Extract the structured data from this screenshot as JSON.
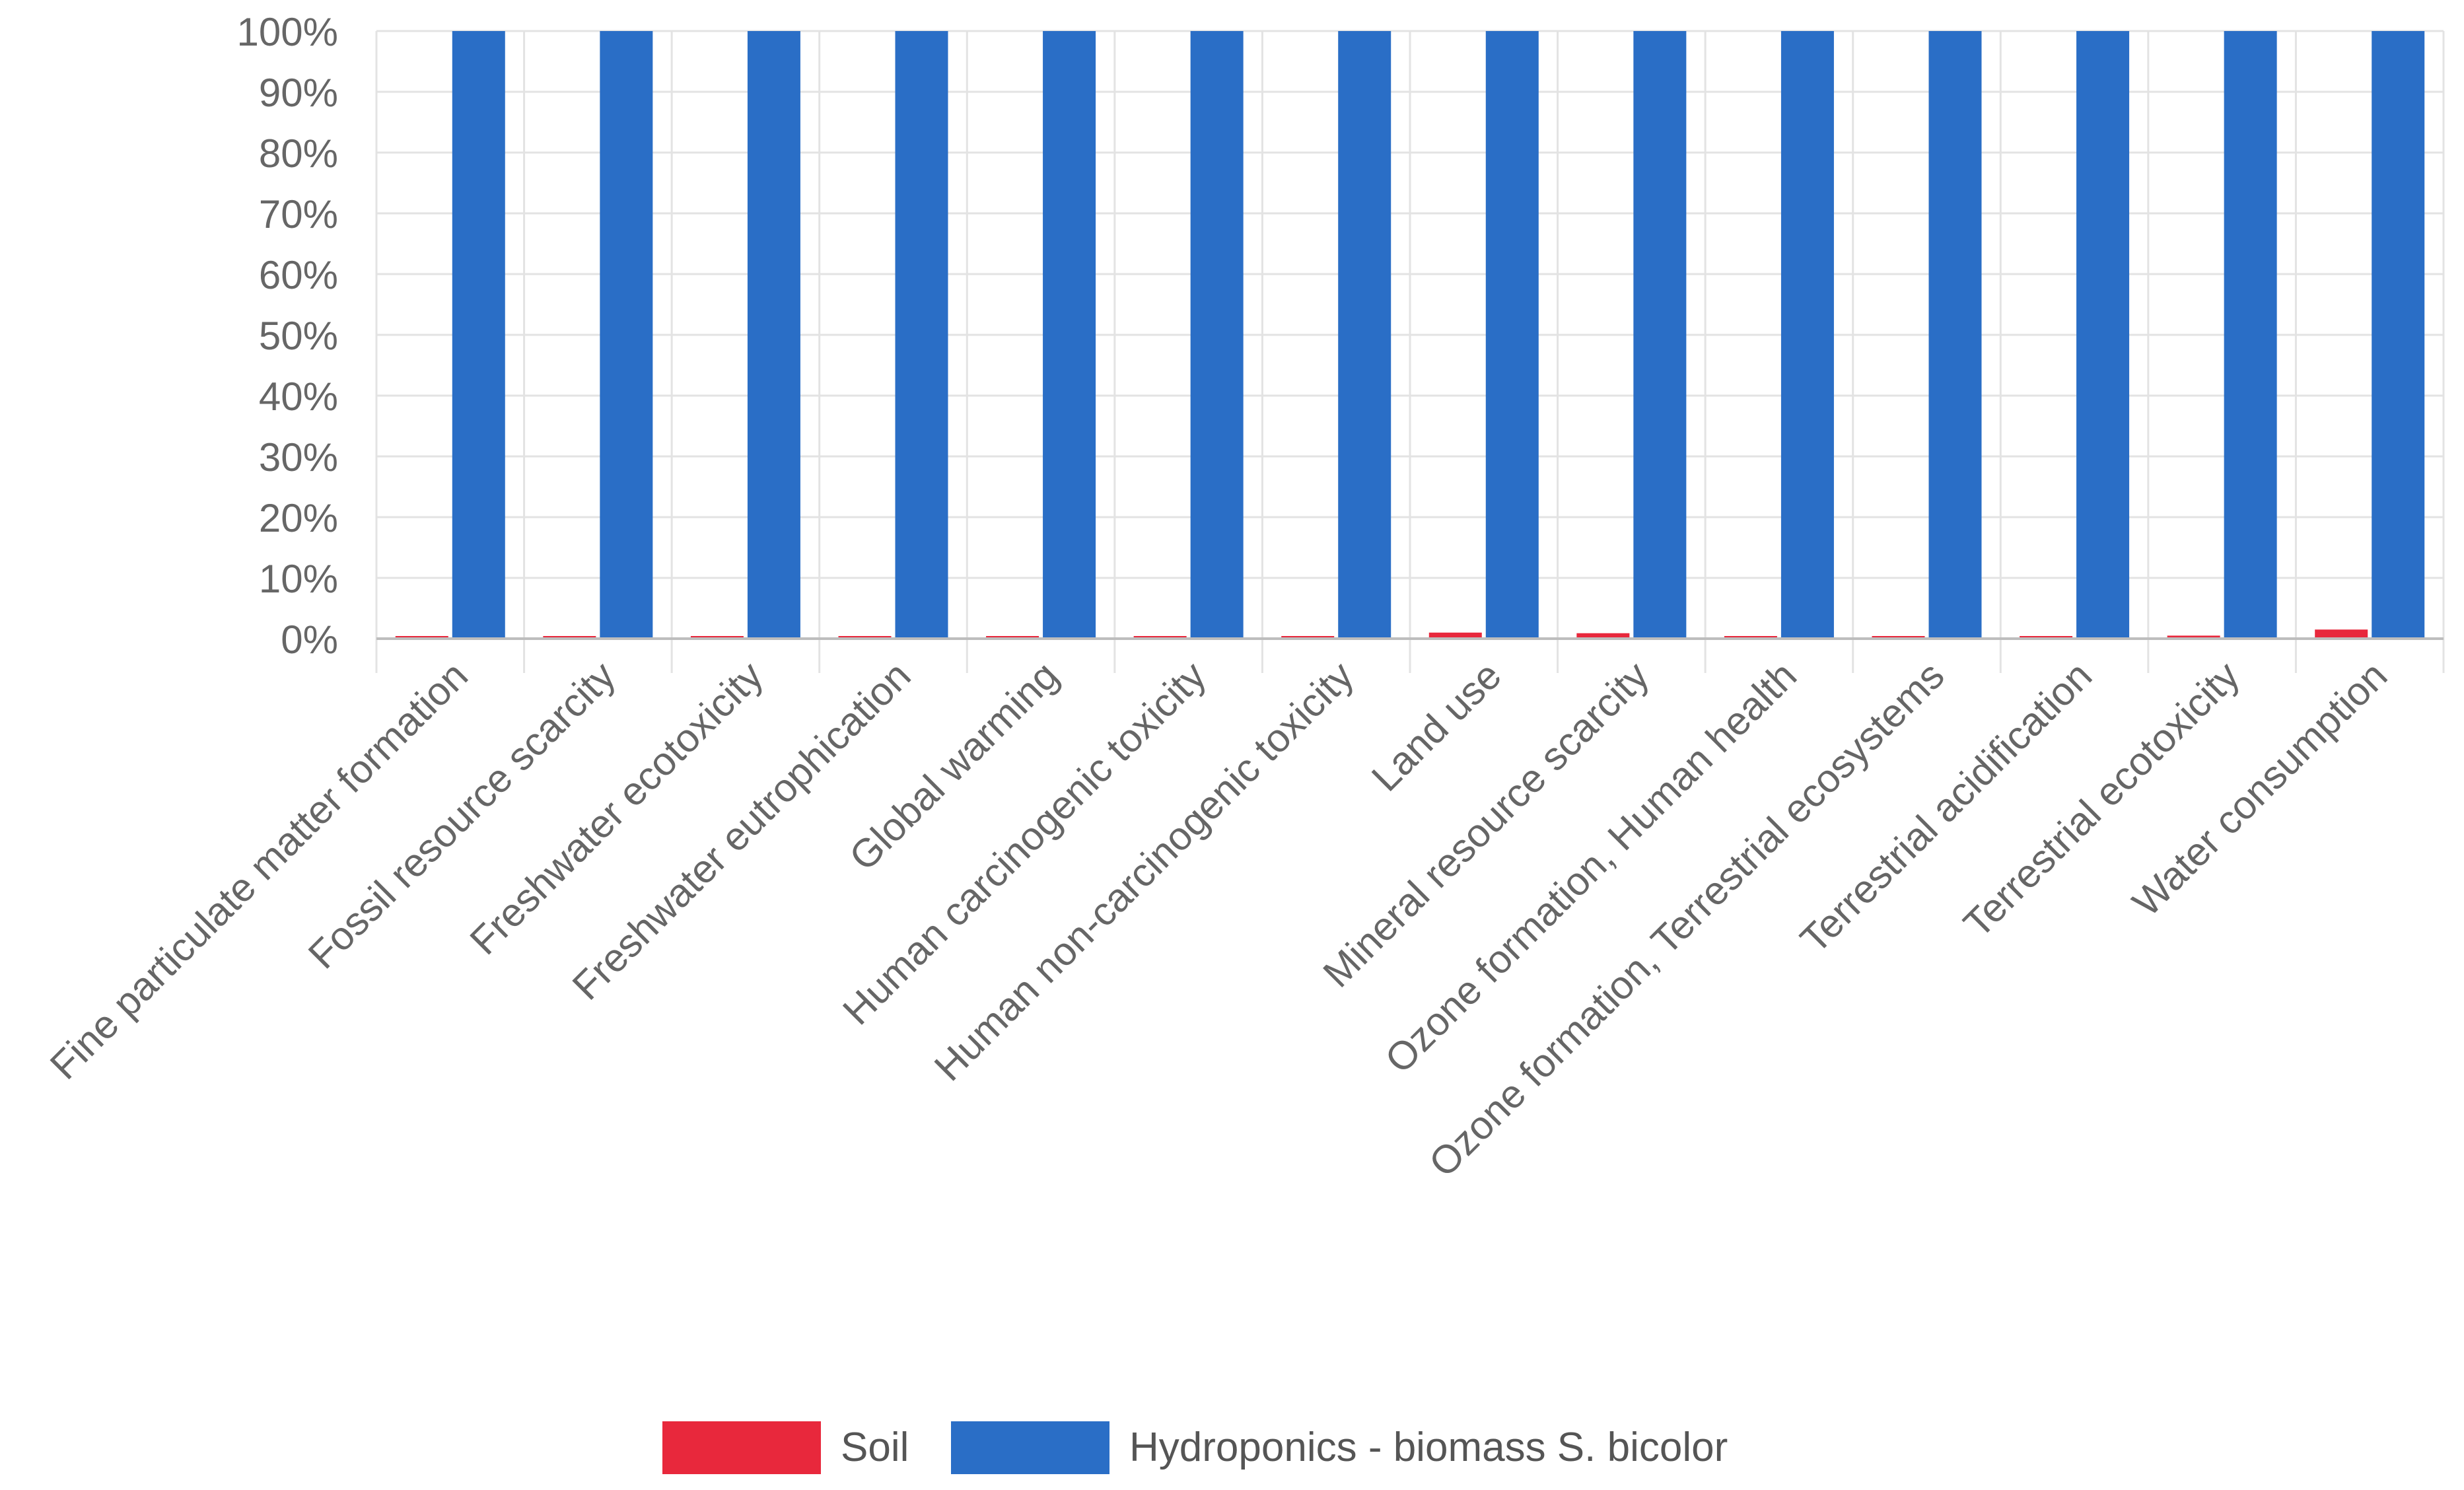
{
  "chart_data": {
    "type": "bar",
    "title": "",
    "xlabel": "",
    "ylabel": "",
    "ylim": [
      0,
      100
    ],
    "yticks": [
      0,
      10,
      20,
      30,
      40,
      50,
      60,
      70,
      80,
      90,
      100
    ],
    "ytick_labels": [
      "0%",
      "10%",
      "20%",
      "30%",
      "40%",
      "50%",
      "60%",
      "70%",
      "80%",
      "90%",
      "100%"
    ],
    "grid": true,
    "legend_position": "bottom-center",
    "categories": [
      "Fine particulate matter formation",
      "Fossil resource scarcity",
      "Freshwater ecotoxicity",
      "Freshwater eutrophication",
      "Global warming",
      "Human carcinogenic toxicity",
      "Human non-carcinogenic toxicity",
      "Land use",
      "Mineral resource scarcity",
      "Ozone formation, Human health",
      "Ozone formation, Terrestrial ecosystems",
      "Terrestrial acidification",
      "Terrestrial ecotoxicity",
      "Water consumption"
    ],
    "series": [
      {
        "name": "Soil",
        "color": "#e8283c",
        "values": [
          0.1,
          0.1,
          0.1,
          0.0,
          0.1,
          0.2,
          0.2,
          1.0,
          0.9,
          0.1,
          0.1,
          0.1,
          0.5,
          1.5
        ]
      },
      {
        "name": "Hydroponics - biomass S. bicolor",
        "color": "#2a6ec6",
        "values": [
          100,
          100,
          100,
          100,
          100,
          100,
          100,
          100,
          100,
          100,
          100,
          100,
          100,
          100
        ]
      }
    ]
  },
  "colors": {
    "grid": "#e3e3e3",
    "axis": "#bdbdbd",
    "text": "#666666"
  }
}
